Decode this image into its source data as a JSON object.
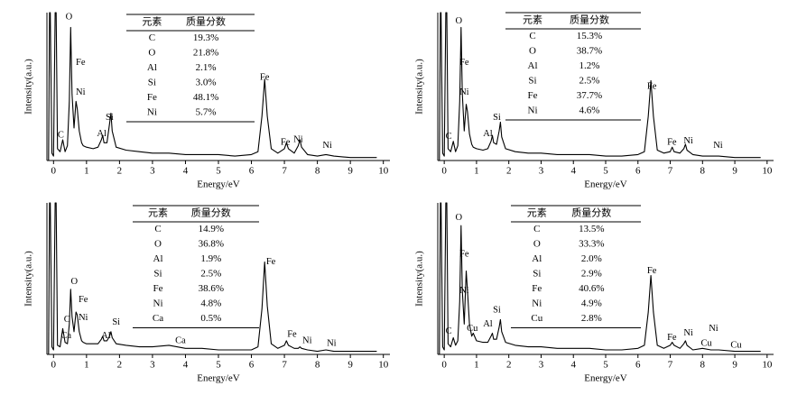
{
  "chart_data": [
    {
      "type": "line",
      "x_label": "Energy/eV",
      "y_label": "Intensity(a.u.)",
      "xlim": [
        -0.2,
        10.2
      ],
      "ylim": [
        0,
        100
      ],
      "xticks": [
        0,
        1,
        2,
        3,
        4,
        5,
        6,
        7,
        8,
        9,
        10
      ],
      "color": "#000000",
      "x": [
        -0.15,
        -0.12,
        -0.1,
        -0.05,
        0,
        0.05,
        0.08,
        0.12,
        0.2,
        0.28,
        0.35,
        0.42,
        0.48,
        0.52,
        0.56,
        0.62,
        0.68,
        0.72,
        0.78,
        0.85,
        0.9,
        1.0,
        1.2,
        1.35,
        1.45,
        1.49,
        1.53,
        1.62,
        1.7,
        1.74,
        1.78,
        1.9,
        2.2,
        2.6,
        3.0,
        3.5,
        4.0,
        4.5,
        5.0,
        5.5,
        6.0,
        6.2,
        6.32,
        6.4,
        6.48,
        6.6,
        6.8,
        7.0,
        7.06,
        7.12,
        7.3,
        7.42,
        7.47,
        7.52,
        7.7,
        8.0,
        8.26,
        8.5,
        9.0,
        9.5,
        9.8
      ],
      "values": [
        0,
        100,
        100,
        5,
        3,
        100,
        100,
        8,
        6,
        14,
        6,
        10,
        40,
        90,
        45,
        22,
        40,
        35,
        20,
        12,
        10,
        9,
        8,
        9,
        14,
        17,
        12,
        12,
        25,
        32,
        20,
        9,
        7,
        6,
        5,
        5,
        4,
        4,
        4,
        3,
        4,
        6,
        30,
        55,
        30,
        8,
        5,
        8,
        12,
        8,
        5,
        10,
        14,
        9,
        4,
        3,
        4,
        3,
        2,
        2,
        2
      ],
      "annotations": [
        {
          "text": "O",
          "x": 0.47,
          "y": 97
        },
        {
          "text": "Fe",
          "x": 0.82,
          "y": 66
        },
        {
          "text": "Ni",
          "x": 0.82,
          "y": 46
        },
        {
          "text": "C",
          "x": 0.22,
          "y": 17
        },
        {
          "text": "Al",
          "x": 1.46,
          "y": 18
        },
        {
          "text": "Si",
          "x": 1.7,
          "y": 29
        },
        {
          "text": "Fe",
          "x": 6.4,
          "y": 56
        },
        {
          "text": "Fe",
          "x": 7.03,
          "y": 12
        },
        {
          "text": "Ni",
          "x": 7.42,
          "y": 14
        },
        {
          "text": "Ni",
          "x": 8.3,
          "y": 10
        }
      ],
      "table": {
        "header": [
          "元素",
          "质量分数"
        ],
        "rows": [
          [
            "C",
            "19.3%"
          ],
          [
            "O",
            "21.8%"
          ],
          [
            "Al",
            "2.1%"
          ],
          [
            "Si",
            "3.0%"
          ],
          [
            "Fe",
            "48.1%"
          ],
          [
            "Ni",
            "5.7%"
          ]
        ]
      }
    },
    {
      "type": "line",
      "x_label": "Energy/eV",
      "y_label": "Intensity(a.u.)",
      "xlim": [
        -0.2,
        10.2
      ],
      "ylim": [
        0,
        100
      ],
      "xticks": [
        0,
        1,
        2,
        3,
        4,
        5,
        6,
        7,
        8,
        9,
        10
      ],
      "color": "#000000",
      "x": [
        -0.15,
        -0.12,
        -0.1,
        -0.05,
        0,
        0.05,
        0.08,
        0.12,
        0.2,
        0.28,
        0.35,
        0.42,
        0.48,
        0.52,
        0.56,
        0.62,
        0.68,
        0.72,
        0.78,
        0.85,
        0.9,
        1.0,
        1.2,
        1.35,
        1.45,
        1.49,
        1.53,
        1.62,
        1.7,
        1.74,
        1.78,
        1.9,
        2.2,
        2.6,
        3.0,
        3.5,
        4.0,
        4.5,
        5.0,
        5.5,
        6.0,
        6.2,
        6.32,
        6.4,
        6.48,
        6.6,
        6.8,
        7.0,
        7.06,
        7.12,
        7.3,
        7.42,
        7.47,
        7.52,
        7.7,
        8.0,
        8.26,
        8.5,
        9.0,
        9.5,
        9.8
      ],
      "values": [
        0,
        100,
        100,
        5,
        3,
        100,
        100,
        8,
        6,
        13,
        6,
        10,
        40,
        90,
        45,
        20,
        38,
        33,
        18,
        11,
        9,
        8,
        7,
        8,
        13,
        17,
        12,
        11,
        20,
        26,
        16,
        8,
        6,
        5,
        5,
        4,
        4,
        4,
        3,
        3,
        4,
        6,
        30,
        54,
        30,
        7,
        5,
        6,
        9,
        6,
        5,
        8,
        11,
        7,
        4,
        3,
        3,
        3,
        2,
        2,
        2
      ],
      "annotations": [
        {
          "text": "O",
          "x": 0.45,
          "y": 94
        },
        {
          "text": "Fe",
          "x": 0.62,
          "y": 66
        },
        {
          "text": "Ni",
          "x": 0.62,
          "y": 46
        },
        {
          "text": "C",
          "x": 0.14,
          "y": 16
        },
        {
          "text": "Al",
          "x": 1.35,
          "y": 18
        },
        {
          "text": "Si",
          "x": 1.63,
          "y": 29
        },
        {
          "text": "Fe",
          "x": 6.43,
          "y": 50
        },
        {
          "text": "Fe",
          "x": 7.05,
          "y": 12
        },
        {
          "text": "Ni",
          "x": 7.56,
          "y": 13
        },
        {
          "text": "Ni",
          "x": 8.48,
          "y": 10
        }
      ],
      "table": {
        "header": [
          "元素",
          "质量分数"
        ],
        "rows": [
          [
            "C",
            "15.3%"
          ],
          [
            "O",
            "38.7%"
          ],
          [
            "Al",
            "1.2%"
          ],
          [
            "Si",
            "2.5%"
          ],
          [
            "Fe",
            "37.7%"
          ],
          [
            "Ni",
            "4.6%"
          ]
        ]
      }
    },
    {
      "type": "line",
      "x_label": "Energy/eV",
      "y_label": "Intensity(a.u.)",
      "xlim": [
        -0.2,
        10.2
      ],
      "ylim": [
        0,
        100
      ],
      "xticks": [
        0,
        1,
        2,
        3,
        4,
        5,
        6,
        7,
        8,
        9,
        10
      ],
      "color": "#000000",
      "x": [
        -0.15,
        -0.12,
        -0.1,
        -0.05,
        0,
        0.05,
        0.08,
        0.12,
        0.2,
        0.28,
        0.35,
        0.42,
        0.48,
        0.52,
        0.56,
        0.62,
        0.68,
        0.72,
        0.78,
        0.85,
        0.9,
        1.0,
        1.2,
        1.35,
        1.45,
        1.49,
        1.53,
        1.62,
        1.7,
        1.74,
        1.78,
        1.9,
        2.2,
        2.6,
        3.0,
        3.5,
        4.0,
        4.5,
        5.0,
        5.5,
        6.0,
        6.2,
        6.32,
        6.4,
        6.48,
        6.6,
        6.8,
        7.0,
        7.06,
        7.12,
        7.3,
        7.42,
        7.47,
        7.52,
        7.7,
        8.0,
        8.26,
        8.5,
        9.0,
        9.5,
        9.8
      ],
      "values": [
        0,
        100,
        100,
        5,
        3,
        100,
        100,
        6,
        5,
        17,
        8,
        7,
        20,
        43,
        25,
        15,
        28,
        26,
        15,
        9,
        8,
        7,
        7,
        7,
        10,
        12,
        9,
        9,
        12,
        15,
        11,
        7,
        6,
        5,
        5,
        6,
        4,
        4,
        3,
        3,
        3,
        5,
        30,
        61,
        32,
        7,
        4,
        6,
        9,
        6,
        4,
        4,
        5,
        4,
        3,
        2,
        3,
        2,
        2,
        2,
        2
      ],
      "annotations": [
        {
          "text": "O",
          "x": 0.63,
          "y": 48
        },
        {
          "text": "Fe",
          "x": 0.9,
          "y": 36
        },
        {
          "text": "Ni",
          "x": 0.9,
          "y": 24
        },
        {
          "text": "C",
          "x": 0.41,
          "y": 23
        },
        {
          "text": "Ca",
          "x": 0.38,
          "y": 12
        },
        {
          "text": "Al",
          "x": 1.59,
          "y": 12
        },
        {
          "text": "Si",
          "x": 1.9,
          "y": 21
        },
        {
          "text": "Fe",
          "x": 6.59,
          "y": 61
        },
        {
          "text": "Fe",
          "x": 7.23,
          "y": 13
        },
        {
          "text": "Ni",
          "x": 7.69,
          "y": 9
        },
        {
          "text": "Ni",
          "x": 8.43,
          "y": 7
        },
        {
          "text": "Ca",
          "x": 3.85,
          "y": 9
        }
      ],
      "table": {
        "header": [
          "元素",
          "质量分数"
        ],
        "rows": [
          [
            "C",
            "14.9%"
          ],
          [
            "O",
            "36.8%"
          ],
          [
            "Al",
            "1.9%"
          ],
          [
            "Si",
            "2.5%"
          ],
          [
            "Fe",
            "38.6%"
          ],
          [
            "Ni",
            "4.8%"
          ],
          [
            "Ca",
            "0.5%"
          ]
        ]
      }
    },
    {
      "type": "line",
      "x_label": "Energy/eV",
      "y_label": "Intensity(a.u.)",
      "xlim": [
        -0.2,
        10.2
      ],
      "ylim": [
        0,
        100
      ],
      "xticks": [
        0,
        1,
        2,
        3,
        4,
        5,
        6,
        7,
        8,
        9,
        10
      ],
      "color": "#000000",
      "x": [
        -0.15,
        -0.12,
        -0.1,
        -0.05,
        0,
        0.05,
        0.08,
        0.12,
        0.2,
        0.28,
        0.35,
        0.42,
        0.48,
        0.52,
        0.56,
        0.62,
        0.68,
        0.72,
        0.78,
        0.85,
        0.9,
        1.0,
        1.2,
        1.35,
        1.45,
        1.49,
        1.53,
        1.62,
        1.7,
        1.74,
        1.78,
        1.9,
        2.2,
        2.6,
        3.0,
        3.5,
        4.0,
        4.5,
        5.0,
        5.5,
        6.0,
        6.2,
        6.32,
        6.4,
        6.48,
        6.6,
        6.8,
        7.0,
        7.06,
        7.12,
        7.3,
        7.42,
        7.47,
        7.52,
        7.7,
        8.0,
        8.26,
        8.5,
        9.0,
        9.5,
        9.8
      ],
      "values": [
        0,
        100,
        100,
        5,
        3,
        100,
        100,
        7,
        5,
        11,
        6,
        9,
        35,
        85,
        42,
        20,
        55,
        42,
        20,
        12,
        14,
        9,
        8,
        8,
        12,
        14,
        10,
        10,
        18,
        23,
        15,
        8,
        6,
        5,
        5,
        4,
        4,
        4,
        3,
        3,
        4,
        6,
        28,
        52,
        28,
        6,
        4,
        6,
        8,
        6,
        4,
        7,
        9,
        6,
        3,
        4,
        3,
        3,
        2,
        2,
        2
      ],
      "annotations": [
        {
          "text": "O",
          "x": 0.45,
          "y": 90
        },
        {
          "text": "Fe",
          "x": 0.62,
          "y": 66
        },
        {
          "text": "Ni",
          "x": 0.62,
          "y": 42
        },
        {
          "text": "C",
          "x": 0.14,
          "y": 15
        },
        {
          "text": "Cu",
          "x": 0.87,
          "y": 17
        },
        {
          "text": "Al",
          "x": 1.35,
          "y": 20
        },
        {
          "text": "Si",
          "x": 1.63,
          "y": 29
        },
        {
          "text": "Fe",
          "x": 6.43,
          "y": 55
        },
        {
          "text": "Fe",
          "x": 7.05,
          "y": 11
        },
        {
          "text": "Ni",
          "x": 7.56,
          "y": 14
        },
        {
          "text": "Cu",
          "x": 8.12,
          "y": 7
        },
        {
          "text": "Ni",
          "x": 8.34,
          "y": 17
        },
        {
          "text": "Cu",
          "x": 9.04,
          "y": 6
        }
      ],
      "table": {
        "header": [
          "元素",
          "质量分数"
        ],
        "rows": [
          [
            "C",
            "13.5%"
          ],
          [
            "O",
            "33.3%"
          ],
          [
            "Al",
            "2.0%"
          ],
          [
            "Si",
            "2.9%"
          ],
          [
            "Fe",
            "40.6%"
          ],
          [
            "Ni",
            "4.9%"
          ],
          [
            "Cu",
            "2.8%"
          ]
        ]
      }
    }
  ]
}
